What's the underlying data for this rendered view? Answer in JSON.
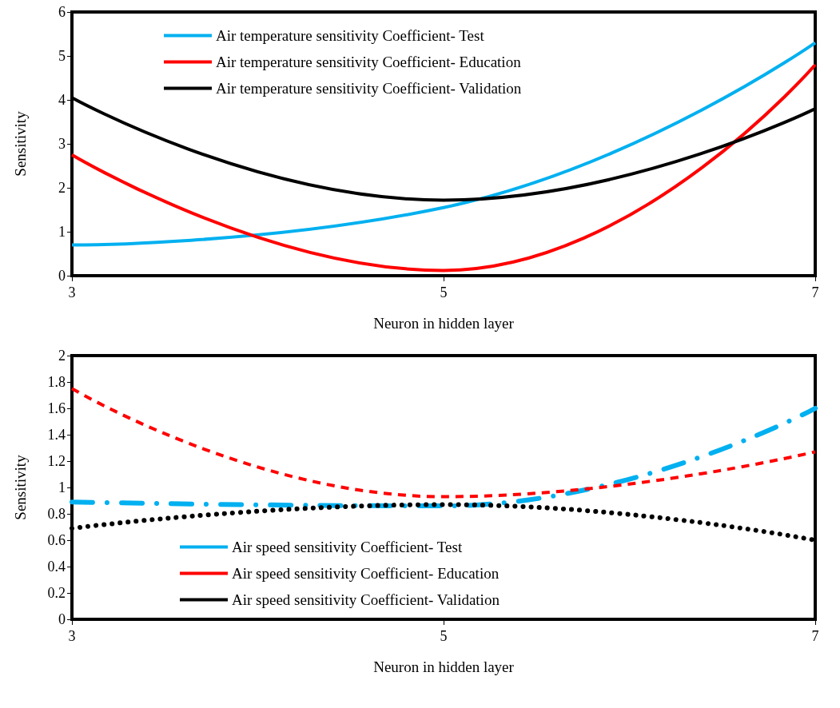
{
  "chart_data": [
    {
      "type": "line",
      "xlabel": "Neuron in hidden layer",
      "ylabel": "Sensitivity",
      "x": [
        3,
        5,
        7
      ],
      "xlim": [
        3,
        7
      ],
      "xticks": [
        3,
        5,
        7
      ],
      "ylim": [
        0,
        6
      ],
      "yticks": [
        0,
        1,
        2,
        3,
        4,
        5,
        6
      ],
      "grid": false,
      "legend": "top",
      "marker": "none",
      "line_style": "solid",
      "series": [
        {
          "name": "Air temperature sensitivity Coefficient- Test",
          "color": "#00b0f0",
          "values": [
            0.7,
            1.55,
            5.3
          ]
        },
        {
          "name": "Air temperature sensitivity Coefficient- Education",
          "color": "#ff0000",
          "values": [
            2.75,
            0.12,
            4.8
          ]
        },
        {
          "name": "Air temperature sensitivity Coefficient- Validation",
          "color": "#000000",
          "values": [
            4.05,
            1.72,
            3.8
          ]
        }
      ]
    },
    {
      "type": "line",
      "xlabel": "Neuron in hidden layer",
      "ylabel": "Sensitivity",
      "x": [
        3,
        5,
        7
      ],
      "xlim": [
        3,
        7
      ],
      "xticks": [
        3,
        5,
        7
      ],
      "ylim": [
        0,
        2
      ],
      "yticks": [
        0,
        0.2,
        0.4,
        0.6,
        0.8,
        1,
        1.2,
        1.4,
        1.6,
        1.8,
        2
      ],
      "grid": false,
      "legend": "bottom",
      "marker": "none",
      "series": [
        {
          "name": "Air speed sensitivity Coefficient- Test",
          "color": "#00b0f0",
          "values": [
            0.89,
            0.86,
            1.6
          ],
          "line_style": "dashdot"
        },
        {
          "name": "Air speed sensitivity Coefficient- Education",
          "color": "#ff0000",
          "values": [
            1.75,
            0.93,
            1.27
          ],
          "line_style": "dashed"
        },
        {
          "name": "Air speed sensitivity Coefficient- Validation",
          "color": "#000000",
          "values": [
            0.69,
            0.87,
            0.6
          ],
          "line_style": "dotted"
        }
      ]
    }
  ]
}
